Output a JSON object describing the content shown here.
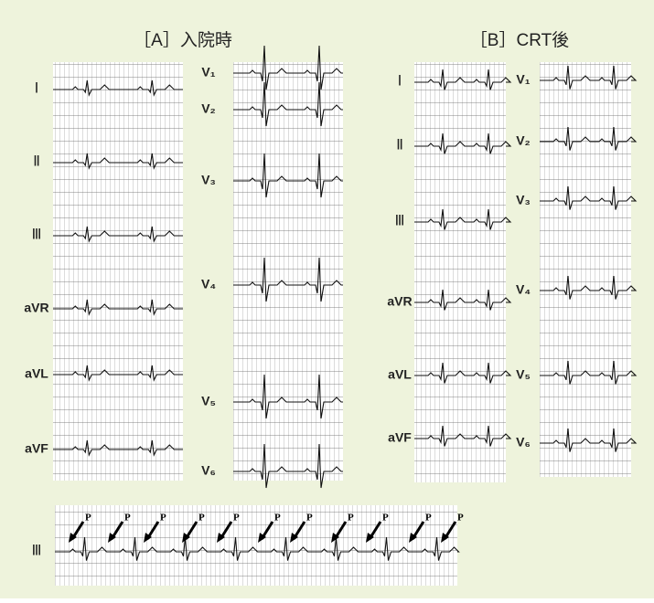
{
  "panels": [
    {
      "title": "［A］入院時",
      "leads_left": [
        "Ⅰ",
        "Ⅱ",
        "Ⅲ",
        "aVR",
        "aVL",
        "aVF"
      ],
      "leads_right": [
        "V₁",
        "V₂",
        "V₃",
        "V₄",
        "V₅",
        "V₆"
      ]
    },
    {
      "title": "［B］CRT後",
      "leads_left": [
        "Ⅰ",
        "Ⅱ",
        "Ⅲ",
        "aVR",
        "aVL",
        "aVF"
      ],
      "leads_right": [
        "V₁",
        "V₂",
        "V₃",
        "V₄",
        "V₅",
        "V₆"
      ]
    }
  ],
  "rhythm_strip": {
    "lead": "Ⅲ",
    "markers": [
      "P",
      "P",
      "P",
      "P",
      "P",
      "P",
      "P",
      "P",
      "P",
      "P",
      "P"
    ]
  }
}
